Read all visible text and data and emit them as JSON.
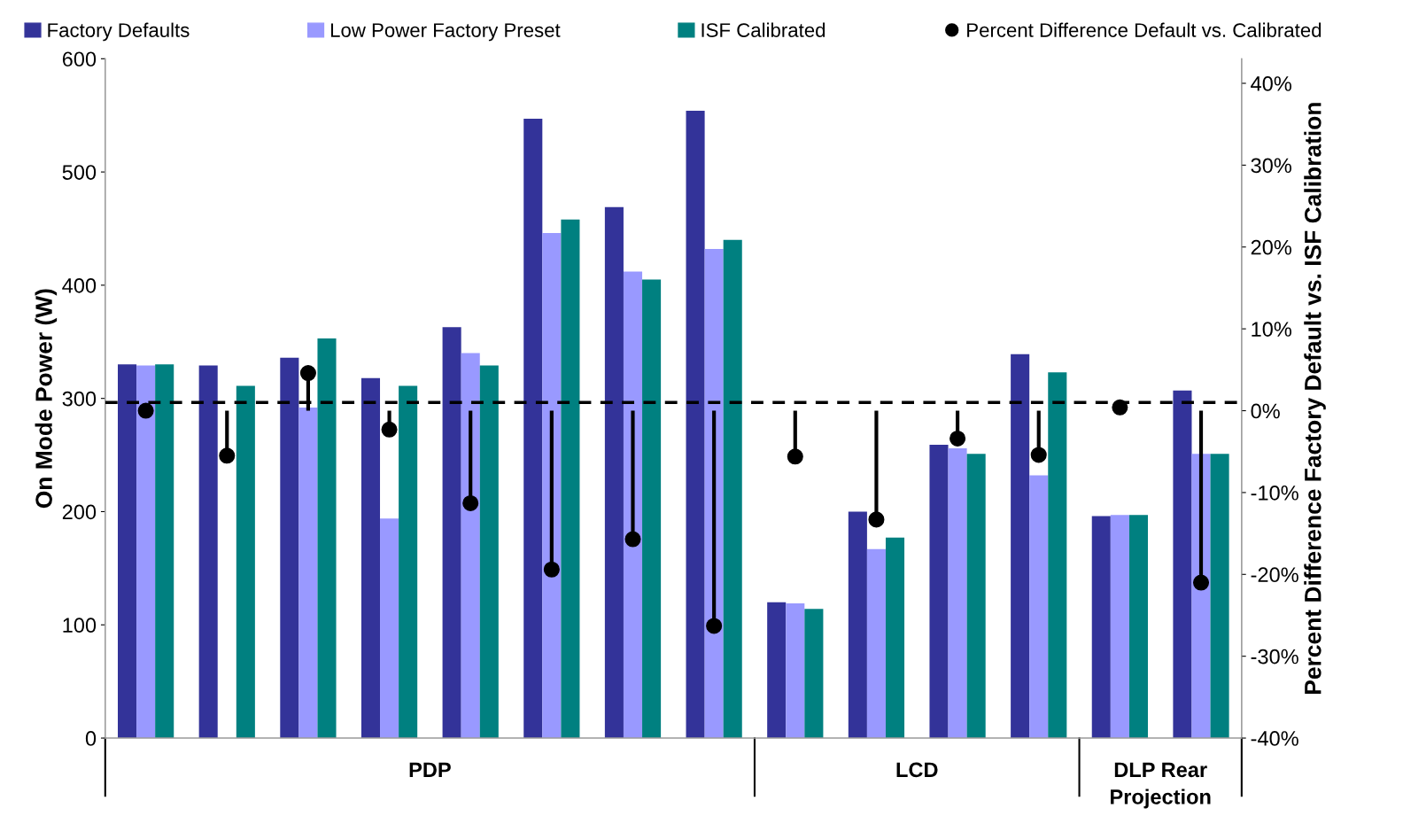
{
  "chart_data": {
    "type": "bar",
    "categories": [
      null,
      null,
      null,
      null,
      null,
      null,
      null,
      null,
      null,
      null,
      null,
      null,
      null,
      null
    ],
    "series": [
      {
        "name": "Factory Defaults",
        "color": "#333399",
        "values": [
          330,
          329,
          336,
          318,
          363,
          547,
          469,
          554,
          120,
          200,
          259,
          339,
          196,
          307
        ]
      },
      {
        "name": "Low Power Factory Preset",
        "color": "#9999ff",
        "values": [
          329,
          null,
          292,
          194,
          340,
          446,
          412,
          432,
          119,
          167,
          256,
          232,
          197,
          251
        ]
      },
      {
        "name": "ISF Calibrated",
        "color": "#008080",
        "values": [
          330,
          311,
          353,
          311,
          329,
          458,
          405,
          440,
          114,
          177,
          251,
          323,
          197,
          251
        ]
      },
      {
        "name": "Percent Difference Default vs. Calibrated",
        "type": "lollipop",
        "axis": "y2",
        "color": "#000000",
        "marker": "circle",
        "values": [
          0,
          -5.5,
          4.6,
          -2.3,
          -11.3,
          -19.4,
          -15.7,
          -26.3,
          -5.6,
          -13.3,
          -3.4,
          -5.4,
          0.4,
          -21
        ]
      }
    ],
    "ylabel": "On Mode Power (W)",
    "y2label": "Percent Difference Factory Default vs. ISF Calibration",
    "ylim": [
      0,
      600
    ],
    "yticks": [
      0,
      100,
      200,
      300,
      400,
      500,
      600
    ],
    "y2lim": [
      -40,
      43
    ],
    "y2ticks": [
      {
        "value": -40,
        "label": "-40%"
      },
      {
        "value": -30,
        "label": "-30%"
      },
      {
        "value": -20,
        "label": "-20%"
      },
      {
        "value": -10,
        "label": "-10%"
      },
      {
        "value": 0,
        "label": "0%"
      },
      {
        "value": 10,
        "label": "10%"
      },
      {
        "value": 20,
        "label": "20%"
      },
      {
        "value": 30,
        "label": "30%"
      },
      {
        "value": 40,
        "label": "40%"
      }
    ],
    "ref_lines": [
      {
        "axis": "y2",
        "value": 1,
        "color": "#000000",
        "line_style": "dashed"
      }
    ],
    "annotations": [
      "PDP",
      "LCD",
      "DLP Rear\nProjection"
    ],
    "legend": "top",
    "grid": false
  }
}
